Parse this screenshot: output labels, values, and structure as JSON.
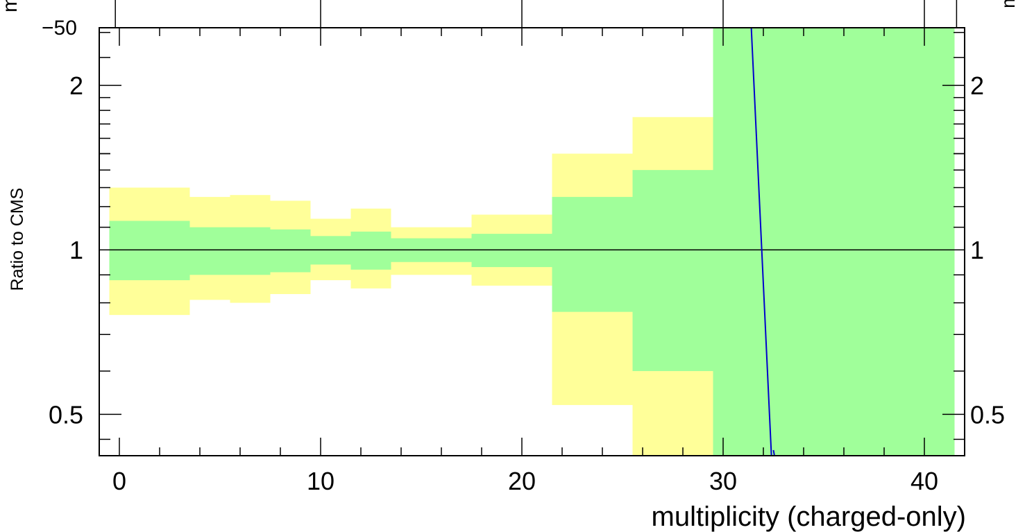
{
  "chart_data": {
    "type": "area",
    "title": "",
    "xlabel": "multiplicity (charged-only)",
    "ylabel": "Ratio to CMS",
    "xlim": [
      -1,
      42
    ],
    "ylim": [
      0.42,
      2.55
    ],
    "y_scale": "log",
    "x_ticks": [
      "0",
      "10",
      "20",
      "30",
      "40"
    ],
    "y_ticks": [
      "0.5",
      "1",
      "2"
    ],
    "right_y_ticks": [
      "0.5",
      "1",
      "2"
    ],
    "reference_line": 1,
    "clipped_top_labels": {
      "left_tick": "−50",
      "left_axis_fragment": "m",
      "right_axis_fragment": "m"
    },
    "colors": {
      "inner_band": "#a0ff9a",
      "outer_band": "#ffff99",
      "curve": "#0000cc",
      "reference": "#000000"
    },
    "series": [
      {
        "type": "band",
        "bins": [
          {
            "xlow": -0.5,
            "xhigh": 3.5,
            "outer": [
              0.76,
              1.3
            ],
            "inner": [
              0.88,
              1.13
            ]
          },
          {
            "xlow": 3.5,
            "xhigh": 5.5,
            "outer": [
              0.81,
              1.25
            ],
            "inner": [
              0.9,
              1.1
            ]
          },
          {
            "xlow": 5.5,
            "xhigh": 7.5,
            "outer": [
              0.8,
              1.26
            ],
            "inner": [
              0.9,
              1.1
            ]
          },
          {
            "xlow": 7.5,
            "xhigh": 9.5,
            "outer": [
              0.83,
              1.23
            ],
            "inner": [
              0.91,
              1.09
            ]
          },
          {
            "xlow": 9.5,
            "xhigh": 11.5,
            "outer": [
              0.88,
              1.14
            ],
            "inner": [
              0.94,
              1.06
            ]
          },
          {
            "xlow": 11.5,
            "xhigh": 13.5,
            "outer": [
              0.85,
              1.19
            ],
            "inner": [
              0.92,
              1.08
            ]
          },
          {
            "xlow": 13.5,
            "xhigh": 17.5,
            "outer": [
              0.9,
              1.1
            ],
            "inner": [
              0.95,
              1.05
            ]
          },
          {
            "xlow": 17.5,
            "xhigh": 21.5,
            "outer": [
              0.86,
              1.16
            ],
            "inner": [
              0.93,
              1.07
            ]
          },
          {
            "xlow": 21.5,
            "xhigh": 25.5,
            "outer": [
              0.52,
              1.5
            ],
            "inner": [
              0.77,
              1.25
            ]
          },
          {
            "xlow": 25.5,
            "xhigh": 29.5,
            "outer": [
              0.3,
              1.75
            ],
            "inner": [
              0.6,
              1.4
            ]
          },
          {
            "xlow": 29.5,
            "xhigh": 41.5,
            "outer": [
              0.42,
              2.55
            ],
            "inner": [
              0.42,
              2.55
            ]
          }
        ]
      },
      {
        "type": "line",
        "x": [
          31.4,
          32.4
        ],
        "y": [
          2.55,
          0.42
        ]
      },
      {
        "type": "line",
        "x": [
          32.5,
          32.55
        ],
        "y": [
          0.43,
          0.42
        ]
      }
    ]
  }
}
